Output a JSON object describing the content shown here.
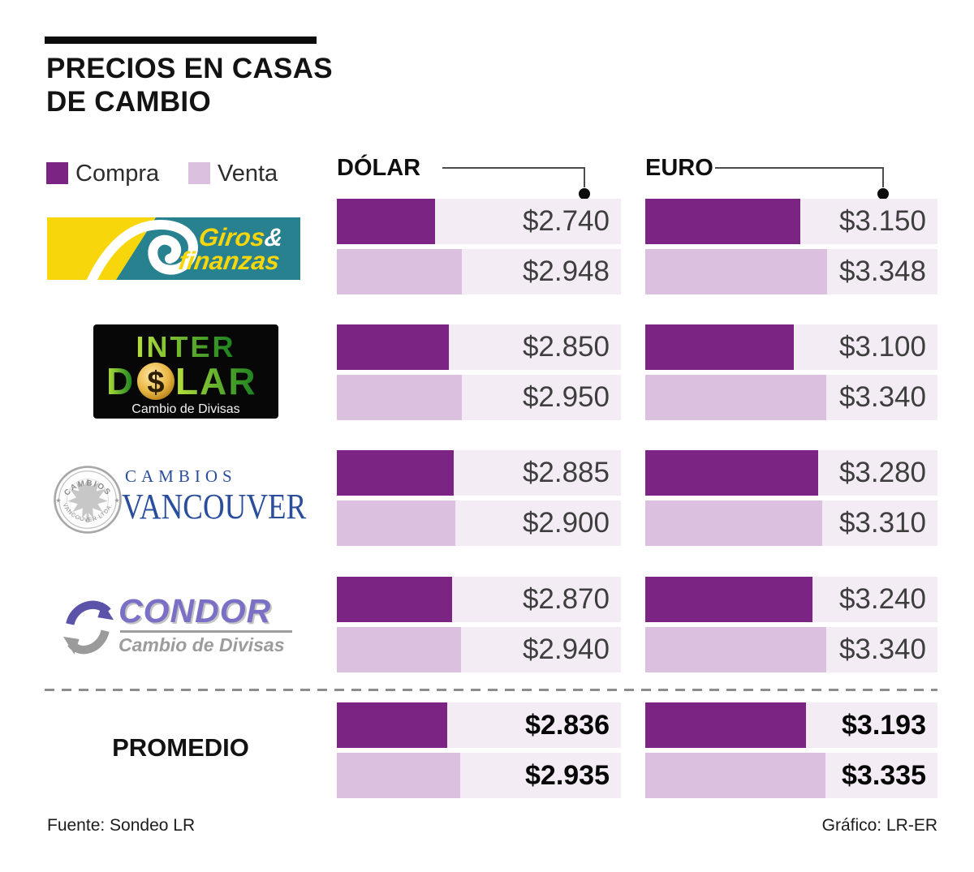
{
  "page": {
    "title_line1": "PRECIOS EN CASAS",
    "title_line2": "DE CAMBIO",
    "footer_source": "Fuente: Sondeo LR",
    "footer_credit": "Gráfico: LR-ER"
  },
  "legend": {
    "compra": "Compra",
    "venta": "Venta"
  },
  "columns": {
    "dolar": "DÓLAR",
    "euro": "EURO"
  },
  "promedio_label": "PROMEDIO",
  "colors": {
    "compra": "#7c2483",
    "venta": "#dbc0df",
    "bar_track": "#f4ecf5",
    "giros_yellow": "#f7d60b",
    "giros_teal": "#27818f",
    "vancouver_blue": "#2a4e9c",
    "condor_purple": "#7a71c6"
  },
  "logos": {
    "giros": {
      "name": "Giros",
      "amp": "&",
      "sub": "finanzas"
    },
    "interdolar": {
      "top": "INTER",
      "d": "D",
      "coin": "$",
      "lar": "LAR",
      "sub": "Cambio de Divisas"
    },
    "vancouver": {
      "small": "CAMBIOS",
      "large": "VANCOUVER",
      "seal_top": "CAMBIOS",
      "seal_bottom": "VANCOUVER LTDA."
    },
    "condor": {
      "name": "CONDOR",
      "sub": "Cambio de Divisas"
    }
  },
  "chart_data": {
    "type": "bar",
    "title": "PRECIOS EN CASAS DE CAMBIO",
    "legend_entries": [
      "Compra",
      "Venta"
    ],
    "groups": [
      "DÓLAR",
      "EURO"
    ],
    "legend_position": "top-left",
    "orientation": "horizontal",
    "bar_scale": {
      "domain_min": 1980,
      "domain_span": 2200
    },
    "rows": [
      {
        "entity": "Giros & Finanzas",
        "dolar": {
          "compra": 2740,
          "venta": 2948
        },
        "euro": {
          "compra": 3150,
          "venta": 3348
        },
        "labels": {
          "dolar_compra": "$2.740",
          "dolar_venta": "$2.948",
          "euro_compra": "$3.150",
          "euro_venta": "$3.348"
        }
      },
      {
        "entity": "Inter Dólar Cambio de Divisas",
        "dolar": {
          "compra": 2850,
          "venta": 2950
        },
        "euro": {
          "compra": 3100,
          "venta": 3340
        },
        "labels": {
          "dolar_compra": "$2.850",
          "dolar_venta": "$2.950",
          "euro_compra": "$3.100",
          "euro_venta": "$3.340"
        }
      },
      {
        "entity": "Cambios Vancouver",
        "dolar": {
          "compra": 2885,
          "venta": 2900
        },
        "euro": {
          "compra": 3280,
          "venta": 3310
        },
        "labels": {
          "dolar_compra": "$2.885",
          "dolar_venta": "$2.900",
          "euro_compra": "$3.280",
          "euro_venta": "$3.310"
        }
      },
      {
        "entity": "Cóndor Cambio de Divisas",
        "dolar": {
          "compra": 2870,
          "venta": 2940
        },
        "euro": {
          "compra": 3240,
          "venta": 3340
        },
        "labels": {
          "dolar_compra": "$2.870",
          "dolar_venta": "$2.940",
          "euro_compra": "$3.240",
          "euro_venta": "$3.340"
        }
      },
      {
        "entity": "PROMEDIO",
        "dolar": {
          "compra": 2836,
          "venta": 2935
        },
        "euro": {
          "compra": 3193,
          "venta": 3335
        },
        "labels": {
          "dolar_compra": "$2.836",
          "dolar_venta": "$2.935",
          "euro_compra": "$3.193",
          "euro_venta": "$3.335"
        }
      }
    ]
  }
}
